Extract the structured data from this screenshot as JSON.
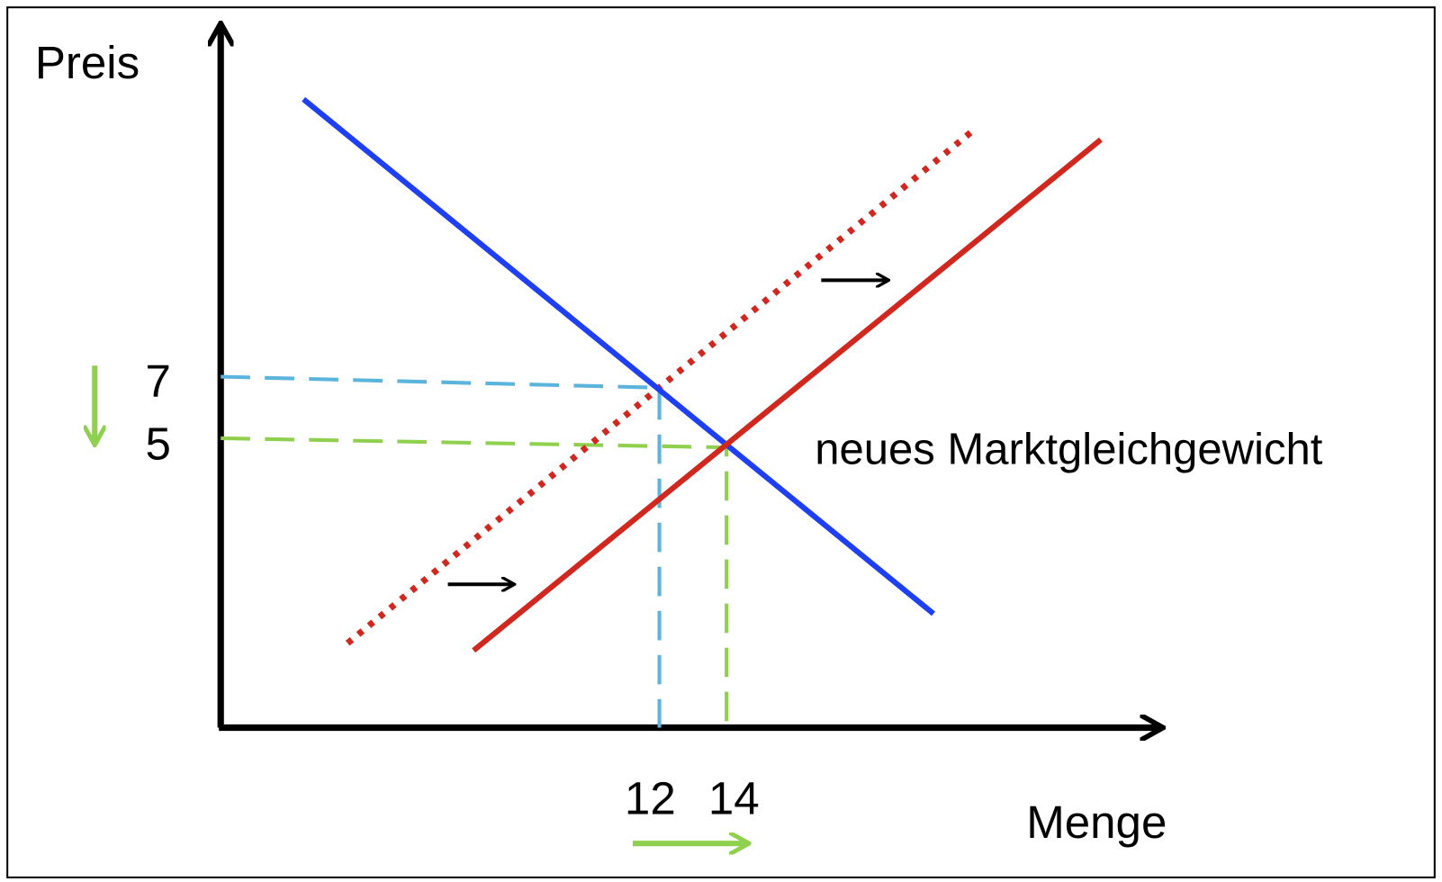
{
  "axes": {
    "y_label": "Preis",
    "x_label": "Menge"
  },
  "price_ticks": [
    "7",
    "5"
  ],
  "quantity_ticks": [
    "12",
    "14"
  ],
  "annotation": "neues Marktgleichgewicht"
}
